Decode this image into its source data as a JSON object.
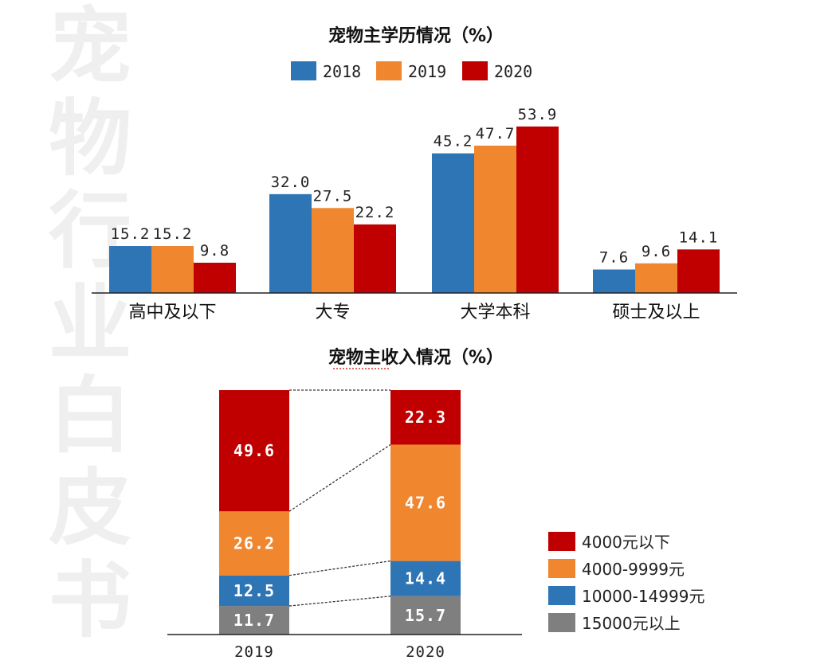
{
  "watermark": "宠物行业白皮书",
  "colors": {
    "y2018": "#2E75B6",
    "y2019": "#F0862E",
    "y2020": "#C00000",
    "gray": "#7F7F7F"
  },
  "chart_data": [
    {
      "type": "bar",
      "title": "宠物主学历情况（%）",
      "categories": [
        "高中及以下",
        "大专",
        "大学本科",
        "硕士及以上"
      ],
      "series": [
        {
          "name": "2018",
          "values": [
            15.2,
            32.0,
            45.2,
            7.6
          ],
          "color": "#2E75B6"
        },
        {
          "name": "2019",
          "values": [
            15.2,
            27.5,
            47.7,
            9.6
          ],
          "color": "#F0862E"
        },
        {
          "name": "2020",
          "values": [
            9.8,
            22.2,
            53.9,
            14.1
          ],
          "color": "#C00000"
        }
      ],
      "legend_position": "top",
      "grid": false
    },
    {
      "type": "bar",
      "stacked": true,
      "title": "宠物主收入情况（%）",
      "categories": [
        "2019",
        "2020"
      ],
      "series": [
        {
          "name": "15000元以上",
          "values": [
            11.7,
            15.7
          ],
          "color": "#7F7F7F"
        },
        {
          "name": "10000-14999元",
          "values": [
            12.5,
            14.4
          ],
          "color": "#2E75B6"
        },
        {
          "name": "4000-9999元",
          "values": [
            26.2,
            47.6
          ],
          "color": "#F0862E"
        },
        {
          "name": "4000元以下",
          "values": [
            49.6,
            22.3
          ],
          "color": "#C00000"
        }
      ],
      "legend_position": "right",
      "legend_order": [
        "4000元以下",
        "4000-9999元",
        "10000-14999元",
        "15000元以上"
      ],
      "grid": false
    }
  ]
}
